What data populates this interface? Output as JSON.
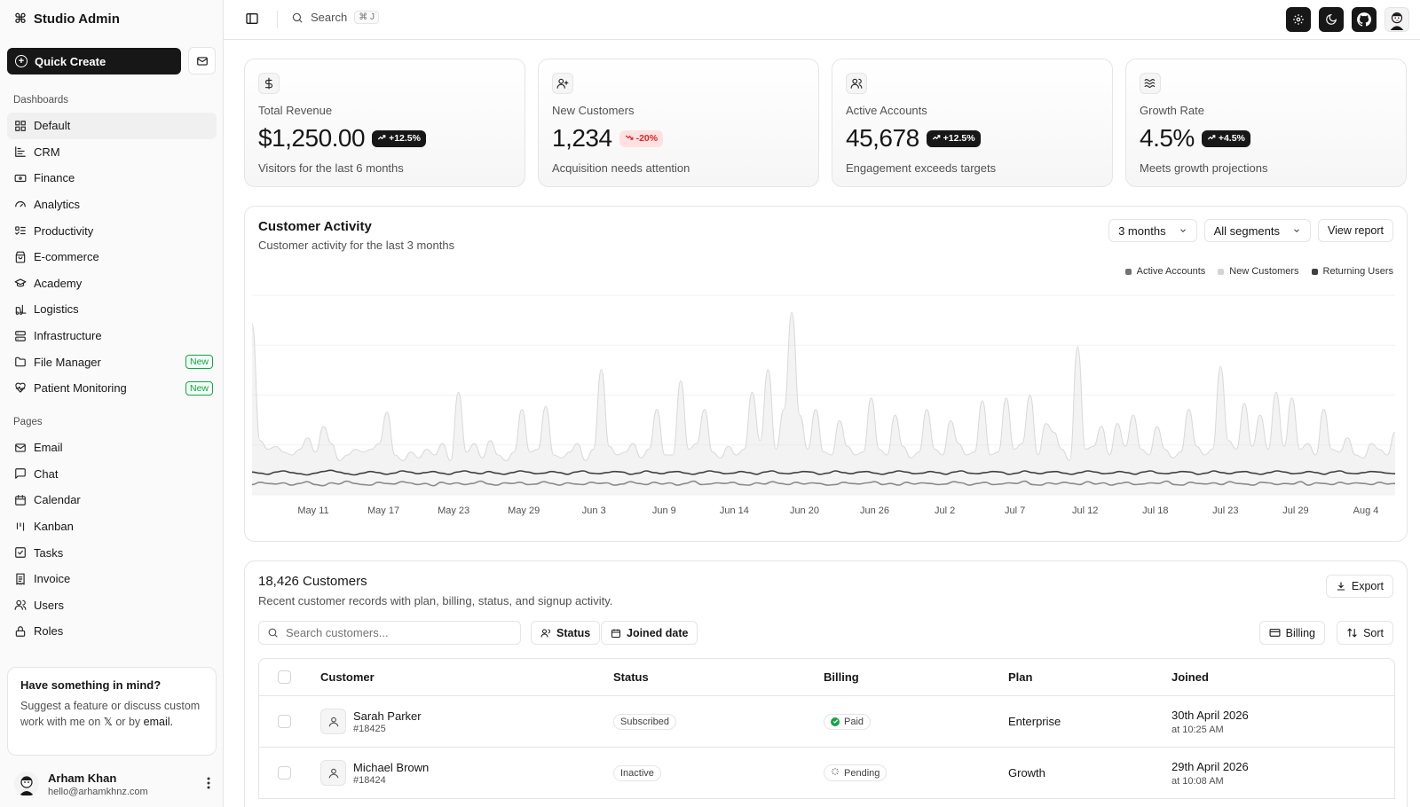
{
  "app": {
    "title": "Studio Admin"
  },
  "sidebar": {
    "quick_create": "Quick Create",
    "dashboards_label": "Dashboards",
    "dashboards": [
      {
        "label": "Default",
        "icon": "layout-grid-icon",
        "active": true
      },
      {
        "label": "CRM",
        "icon": "chart-bar-icon"
      },
      {
        "label": "Finance",
        "icon": "banknote-icon"
      },
      {
        "label": "Analytics",
        "icon": "gauge-icon"
      },
      {
        "label": "Productivity",
        "icon": "list-todo-icon"
      },
      {
        "label": "E-commerce",
        "icon": "shopping-bag-icon"
      },
      {
        "label": "Academy",
        "icon": "graduation-cap-icon"
      },
      {
        "label": "Logistics",
        "icon": "forklift-icon"
      },
      {
        "label": "Infrastructure",
        "icon": "server-icon"
      },
      {
        "label": "File Manager",
        "icon": "folder-icon",
        "badge": "New"
      },
      {
        "label": "Patient Monitoring",
        "icon": "heart-pulse-icon",
        "badge": "New"
      }
    ],
    "pages_label": "Pages",
    "pages": [
      {
        "label": "Email",
        "icon": "mail-icon"
      },
      {
        "label": "Chat",
        "icon": "message-square-icon"
      },
      {
        "label": "Calendar",
        "icon": "calendar-icon"
      },
      {
        "label": "Kanban",
        "icon": "kanban-icon"
      },
      {
        "label": "Tasks",
        "icon": "square-check-icon"
      },
      {
        "label": "Invoice",
        "icon": "receipt-icon"
      },
      {
        "label": "Users",
        "icon": "users-icon"
      },
      {
        "label": "Roles",
        "icon": "lock-icon"
      }
    ],
    "promo": {
      "title": "Have something in mind?",
      "body_1": "Suggest a feature or discuss custom work with me on",
      "x_glyph": "𝕏",
      "body_2": "or by",
      "email_word": "email."
    },
    "user": {
      "name": "Arham Khan",
      "email": "hello@arhamkhnz.com"
    }
  },
  "topbar": {
    "search_label": "Search",
    "shortcut": "⌘ J"
  },
  "cards": [
    {
      "icon": "dollar-icon",
      "label": "Total Revenue",
      "value": "$1,250.00",
      "delta": "+12.5%",
      "trend": "up",
      "footer": "Visitors for the last 6 months"
    },
    {
      "icon": "user-plus-icon",
      "label": "New Customers",
      "value": "1,234",
      "delta": "-20%",
      "trend": "down",
      "footer": "Acquisition needs attention"
    },
    {
      "icon": "users-icon",
      "label": "Active Accounts",
      "value": "45,678",
      "delta": "+12.5%",
      "trend": "up",
      "footer": "Engagement exceeds targets"
    },
    {
      "icon": "waves-icon",
      "label": "Growth Rate",
      "value": "4.5%",
      "delta": "+4.5%",
      "trend": "up",
      "footer": "Meets growth projections"
    }
  ],
  "activity": {
    "title": "Customer Activity",
    "subtitle": "Customer activity for the last 3 months",
    "range_select": "3 months",
    "segment_select": "All segments",
    "view_report": "View report"
  },
  "chart_data": {
    "type": "area",
    "x_ticks": [
      "May 11",
      "May 17",
      "May 23",
      "May 29",
      "Jun 3",
      "Jun 9",
      "Jun 14",
      "Jun 20",
      "Jun 26",
      "Jul 2",
      "Jul 7",
      "Jul 12",
      "Jul 18",
      "Jul 23",
      "Jul 29",
      "Aug 4"
    ],
    "legend": [
      {
        "name": "Active Accounts",
        "color": "#737373"
      },
      {
        "name": "New Customers",
        "color": "#d4d4d4"
      },
      {
        "name": "Returning Users",
        "color": "#404040"
      }
    ],
    "y_axis_labels_visible": false,
    "grid": true,
    "legend_position": "top-right",
    "series": [
      {
        "name": "Active Accounts",
        "values": [
          300,
          95,
          80,
          85,
          75,
          70,
          80,
          100,
          75,
          120,
          90,
          60,
          70,
          80,
          75,
          80,
          90,
          145,
          70,
          60,
          75,
          65,
          80,
          70,
          90,
          60,
          180,
          75,
          90,
          65,
          95,
          70,
          60,
          75,
          150,
          75,
          80,
          155,
          70,
          65,
          75,
          90,
          60,
          80,
          220,
          85,
          70,
          75,
          90,
          65,
          80,
          150,
          70,
          70,
          200,
          80,
          90,
          150,
          75,
          65,
          85,
          70,
          80,
          180,
          95,
          220,
          80,
          150,
          320,
          140,
          80,
          150,
          75,
          70,
          130,
          85,
          70,
          75,
          170,
          80,
          70,
          140,
          85,
          65,
          75,
          150,
          80,
          70,
          130,
          90,
          70,
          75,
          165,
          70,
          75,
          170,
          80,
          90,
          175,
          70,
          125,
          110,
          80,
          60,
          260,
          80,
          85,
          120,
          70,
          125,
          85,
          140,
          80,
          70,
          120,
          80,
          65,
          75,
          150,
          85,
          70,
          80,
          225,
          95,
          80,
          160,
          85,
          140,
          80,
          180,
          85,
          170,
          80,
          90,
          70,
          150,
          80,
          75,
          100,
          70,
          65,
          90,
          80,
          70,
          110
        ]
      },
      {
        "name": "New Customers",
        "values": [
          18,
          22,
          20,
          19,
          21,
          17,
          20,
          23,
          18,
          16,
          21,
          19,
          24,
          20,
          18,
          17,
          22,
          20,
          19,
          23,
          21,
          18,
          20,
          16,
          22,
          19,
          21,
          18,
          20,
          24,
          19,
          17,
          21,
          20,
          22,
          18,
          19,
          23,
          20,
          17,
          21,
          19,
          18,
          22,
          20,
          21,
          17,
          19,
          23,
          20,
          18,
          22,
          19,
          21,
          17,
          20,
          24,
          18,
          19,
          21,
          20,
          22,
          18,
          17,
          21,
          19,
          23,
          20,
          18,
          22,
          19,
          21,
          20,
          17,
          18,
          22,
          20,
          19,
          21,
          23,
          18,
          20,
          17,
          22,
          19,
          21,
          20,
          18,
          19,
          23,
          21,
          17,
          20,
          22,
          18,
          19,
          21,
          20,
          24,
          18,
          17,
          21,
          19,
          22,
          20,
          18,
          23,
          19,
          21,
          17,
          20,
          22,
          18,
          19,
          21,
          20,
          24,
          18,
          17,
          22,
          20,
          19,
          21,
          18,
          23,
          20,
          19,
          17,
          22,
          21,
          18,
          20,
          19,
          23,
          17,
          21,
          20,
          18,
          22,
          19,
          21,
          20,
          18,
          22,
          19,
          20
        ]
      },
      {
        "name": "Returning Users",
        "values": [
          40,
          38,
          36,
          40,
          42,
          39,
          37,
          35,
          38,
          41,
          43,
          40,
          37,
          35,
          38,
          41,
          39,
          36,
          38,
          42,
          40,
          37,
          39,
          41,
          38,
          36,
          40,
          42,
          39,
          37,
          41,
          38,
          36,
          39,
          42,
          40,
          37,
          38,
          41,
          39,
          36,
          40,
          42,
          38,
          37,
          39,
          41,
          40,
          36,
          38,
          42,
          39,
          37,
          40,
          41,
          38,
          36,
          39,
          42,
          40,
          37,
          38,
          41,
          39,
          36,
          40,
          42,
          38,
          37,
          39,
          41,
          40,
          36,
          38,
          42,
          39,
          37,
          40,
          41,
          38,
          36,
          39,
          42,
          40,
          37,
          38,
          41,
          39,
          36,
          40,
          42,
          38,
          37,
          39,
          41,
          40,
          36,
          38,
          42,
          39,
          37,
          40,
          41,
          38,
          36,
          39,
          42,
          40,
          37,
          38,
          41,
          39,
          36,
          40,
          42,
          38,
          37,
          39,
          41,
          40,
          36,
          38,
          42,
          39,
          37,
          40,
          41,
          38,
          36,
          39,
          42,
          40,
          37,
          38,
          41,
          39,
          36,
          40,
          42,
          38,
          37,
          39,
          41,
          40,
          38,
          37
        ]
      }
    ]
  },
  "customers": {
    "title": "18,426 Customers",
    "subtitle": "Recent customer records with plan, billing, status, and signup activity.",
    "export": "Export",
    "search_placeholder": "Search customers...",
    "filter_status": "Status",
    "filter_joined": "Joined date",
    "billing_btn": "Billing",
    "sort_btn": "Sort",
    "columns": [
      "Customer",
      "Status",
      "Billing",
      "Plan",
      "Joined"
    ],
    "rows": [
      {
        "name": "Sarah Parker",
        "id": "#18425",
        "status": "Subscribed",
        "billing": "Paid",
        "plan": "Enterprise",
        "joined_date": "30th April 2026",
        "joined_time": "at 10:25 AM"
      },
      {
        "name": "Michael Brown",
        "id": "#18424",
        "status": "Inactive",
        "billing": "Pending",
        "plan": "Growth",
        "joined_date": "29th April 2026",
        "joined_time": "at 10:08 AM"
      }
    ]
  }
}
